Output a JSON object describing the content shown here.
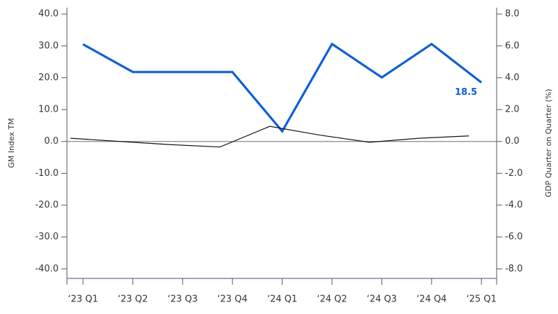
{
  "chart_data": {
    "type": "line",
    "categories": [
      "‘23 Q1",
      "‘23 Q2",
      "‘23 Q3",
      "‘23 Q4",
      "‘24 Q1",
      "‘24 Q2",
      "‘24 Q3",
      "‘24 Q4",
      "‘25 Q1"
    ],
    "series": [
      {
        "name": "GM Index TM",
        "color": "#0b5ed7",
        "values": [
          30.5,
          21.8,
          21.8,
          21.8,
          3.2,
          30.6,
          20.1,
          30.6,
          18.5
        ]
      },
      {
        "name": "GDP Quarter on Quarter (%)",
        "color": "#111111",
        "axis": "y2",
        "values": [
          0.2,
          0.0,
          -0.2,
          -0.35,
          0.95,
          0.4,
          -0.05,
          0.2,
          0.35
        ]
      }
    ],
    "ylabel": "GM Index TM",
    "y2label": "GDP Quarter on Quarter (%)",
    "ylim": [
      -43,
      42
    ],
    "yticks": [
      {
        "value": 40,
        "label": "40.0"
      },
      {
        "value": 30,
        "label": "30.0"
      },
      {
        "value": 20,
        "label": "20.0"
      },
      {
        "value": 10,
        "label": "10.0"
      },
      {
        "value": 0,
        "label": "0.0"
      },
      {
        "value": -10,
        "label": "-10.0"
      },
      {
        "value": -20,
        "label": "-20.0"
      },
      {
        "value": -30,
        "label": "-30.0"
      },
      {
        "value": -40,
        "label": "-40.0"
      }
    ],
    "y2lim": [
      -8.6,
      8.4
    ],
    "y2ticks": [
      {
        "value": 8,
        "label": "8.0"
      },
      {
        "value": 6,
        "label": "6.0"
      },
      {
        "value": 4,
        "label": "4.0"
      },
      {
        "value": 2,
        "label": "2.0"
      },
      {
        "value": 0,
        "label": "0.0"
      },
      {
        "value": -2,
        "label": "-2.0"
      },
      {
        "value": -4,
        "label": "-4.0"
      },
      {
        "value": -6,
        "label": "-6.0"
      },
      {
        "value": -8,
        "label": "-8.0"
      }
    ],
    "zero_line": true
  }
}
